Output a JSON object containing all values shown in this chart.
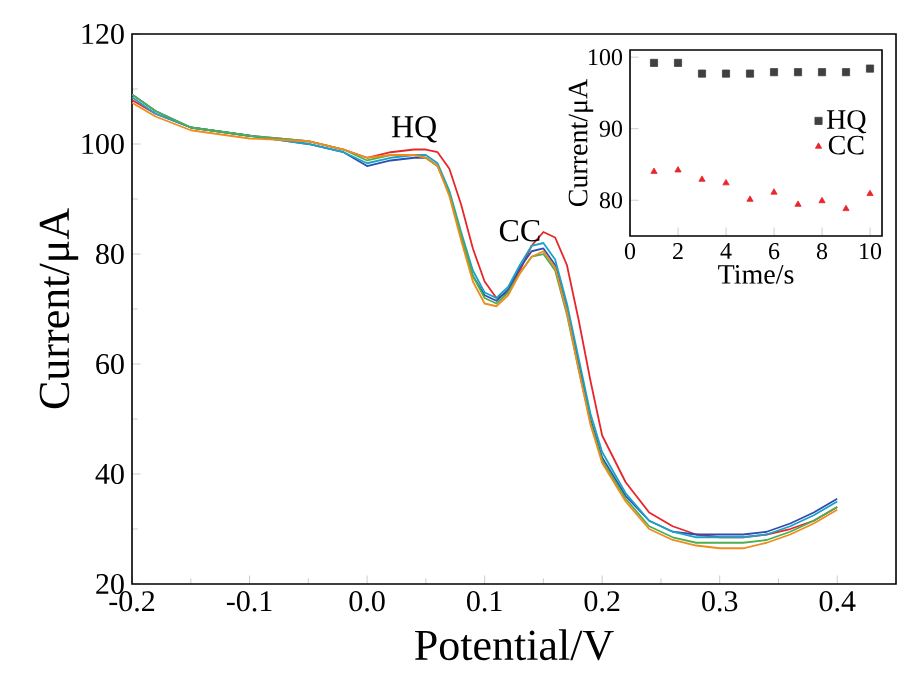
{
  "chart_data": [
    {
      "type": "line",
      "xlabel": "Potential/V",
      "ylabel": "Current/μA",
      "xlim": [
        -0.2,
        0.45
      ],
      "ylim": [
        20,
        120
      ],
      "xticks": [
        -0.2,
        -0.1,
        {
          "value": 0,
          "label": "0.0"
        },
        0.1,
        0.2,
        0.3,
        0.4
      ],
      "yticks": [
        20,
        40,
        60,
        80,
        100,
        120
      ],
      "x": [
        -0.2,
        -0.18,
        -0.15,
        -0.1,
        -0.05,
        -0.02,
        0,
        0.02,
        0.04,
        0.05,
        0.06,
        0.07,
        0.08,
        0.09,
        0.1,
        0.11,
        0.12,
        0.13,
        0.14,
        0.15,
        0.16,
        0.17,
        0.18,
        0.19,
        0.2,
        0.22,
        0.24,
        0.26,
        0.28,
        0.3,
        0.32,
        0.34,
        0.36,
        0.38,
        0.4
      ],
      "series": [
        {
          "color": "#e8262a",
          "values": [
            108,
            105.5,
            103,
            101.5,
            100.5,
            99,
            97.5,
            98.5,
            99,
            99,
            98.5,
            95.5,
            89,
            81,
            75,
            72,
            73,
            77,
            81.5,
            84,
            83,
            78,
            68,
            57,
            47,
            38.5,
            33,
            30.5,
            29,
            28.5,
            28.5,
            29,
            30,
            31.5,
            34
          ]
        },
        {
          "color": "#2f4fb0",
          "values": [
            109,
            106,
            103,
            101.5,
            100,
            98.5,
            96,
            97,
            97.5,
            97.5,
            96,
            91,
            83,
            76,
            72.5,
            71.5,
            73.5,
            77.5,
            80.5,
            81,
            78,
            70,
            60,
            50,
            43,
            36,
            31.5,
            29.5,
            29,
            29,
            29,
            29.5,
            31,
            33,
            35.5
          ]
        },
        {
          "color": "#1ba3c6",
          "values": [
            108.5,
            105.5,
            103,
            101.5,
            100,
            98.5,
            96.5,
            97.5,
            98,
            98,
            96.5,
            91.5,
            84,
            77,
            73,
            72,
            74,
            78,
            81.5,
            82,
            79,
            71,
            61,
            51,
            44,
            36.5,
            31.5,
            29.5,
            28.5,
            28.5,
            28.5,
            29,
            30.5,
            32.5,
            35
          ]
        },
        {
          "color": "#4caf50",
          "values": [
            109,
            106,
            103,
            101.5,
            100.5,
            99,
            97,
            98,
            98,
            97.5,
            96,
            91,
            83.5,
            76,
            72,
            71,
            73,
            76.5,
            79.5,
            80,
            77,
            69,
            59,
            49.5,
            42.5,
            35.5,
            30.5,
            28.5,
            27.5,
            27.5,
            27.5,
            28,
            29.5,
            31.5,
            34
          ]
        },
        {
          "color": "#f08c1e",
          "values": [
            107.5,
            105,
            102.5,
            101,
            100.5,
            99,
            97.5,
            98,
            98,
            97.5,
            96,
            90.5,
            82.5,
            75,
            71,
            70.5,
            72.5,
            76.5,
            79.5,
            80.5,
            77.5,
            69.5,
            59,
            49,
            42,
            35,
            30,
            28,
            27,
            26.5,
            26.5,
            27.5,
            29,
            31,
            33.5
          ]
        }
      ],
      "annotations": [
        {
          "text": "HQ",
          "x": 0.04,
          "y": 99
        },
        {
          "text": "CC",
          "x": 0.13,
          "y": 81
        }
      ]
    },
    {
      "type": "scatter",
      "xlabel": "Time/s",
      "ylabel": "Current/μA",
      "xlim": [
        0,
        10.5
      ],
      "ylim": [
        75,
        101
      ],
      "xticks": [
        0,
        2,
        4,
        6,
        8,
        10
      ],
      "yticks": [
        80,
        90,
        100
      ],
      "legend": "right",
      "x": [
        1,
        2,
        3,
        4,
        5,
        6,
        7,
        8,
        9,
        10
      ],
      "series": [
        {
          "name": "HQ",
          "color": "#404040",
          "marker": "square",
          "values": [
            99.2,
            99.2,
            97.7,
            97.7,
            97.7,
            97.9,
            97.9,
            97.9,
            97.9,
            98.4
          ]
        },
        {
          "name": "CC",
          "color": "#e8262a",
          "marker": "triangle",
          "values": [
            84.0,
            84.2,
            82.9,
            82.4,
            80.1,
            81.1,
            79.4,
            79.9,
            78.8,
            80.9
          ]
        }
      ]
    }
  ]
}
